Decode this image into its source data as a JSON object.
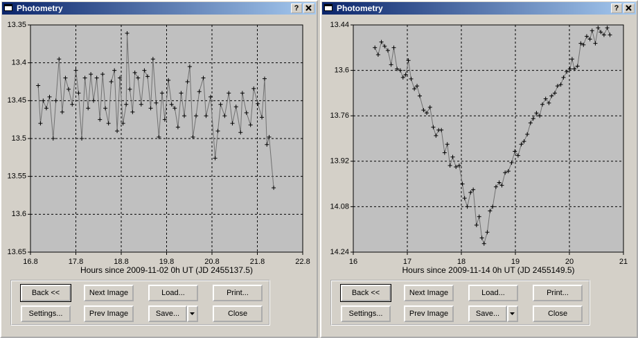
{
  "windows": [
    {
      "title": "Photometry",
      "help": "?",
      "buttons": [
        "Back <<",
        "Next Image",
        "Load...",
        "Print...",
        "Settings...",
        "Prev Image",
        "Save...",
        "Close"
      ]
    },
    {
      "title": "Photometry",
      "help": "?",
      "buttons": [
        "Back <<",
        "Next Image",
        "Load...",
        "Print...",
        "Settings...",
        "Prev Image",
        "Save...",
        "Close"
      ]
    }
  ],
  "chart_data": [
    {
      "type": "line",
      "x_label": "Hours since 2009-11-02 0h UT (JD 2455137.5)",
      "marker": "+",
      "grid": true,
      "invert_y": true,
      "xlim": [
        16.8,
        22.8
      ],
      "xticks": [
        16.8,
        17.8,
        18.8,
        19.8,
        20.8,
        21.8,
        22.8
      ],
      "ylim": [
        13.35,
        13.65
      ],
      "yticks": [
        13.35,
        13.4,
        13.45,
        13.5,
        13.55,
        13.6,
        13.65
      ],
      "x": [
        16.97,
        17.02,
        17.08,
        17.15,
        17.22,
        17.3,
        17.36,
        17.43,
        17.5,
        17.57,
        17.64,
        17.72,
        17.8,
        17.86,
        17.93,
        18.0,
        18.07,
        18.13,
        18.19,
        18.26,
        18.33,
        18.39,
        18.45,
        18.52,
        18.58,
        18.65,
        18.71,
        18.77,
        18.84,
        18.91,
        18.93,
        18.99,
        19.05,
        19.1,
        19.17,
        19.24,
        19.31,
        19.38,
        19.45,
        19.5,
        19.57,
        19.63,
        19.7,
        19.76,
        19.84,
        19.91,
        19.98,
        20.05,
        20.12,
        20.19,
        20.26,
        20.31,
        20.38,
        20.45,
        20.52,
        20.61,
        20.67,
        20.77,
        20.87,
        20.93,
        20.99,
        21.08,
        21.17,
        21.25,
        21.33,
        21.43,
        21.47,
        21.56,
        21.65,
        21.72,
        21.81,
        21.9,
        21.96,
        22.01,
        22.06,
        22.16
      ],
      "series": [
        {
          "color": "#000000",
          "values": [
            13.43,
            13.48,
            13.45,
            13.46,
            13.445,
            13.5,
            13.45,
            13.395,
            13.465,
            13.42,
            13.435,
            13.455,
            13.41,
            13.44,
            13.5,
            13.42,
            13.46,
            13.415,
            13.45,
            13.42,
            13.475,
            13.415,
            13.46,
            13.48,
            13.425,
            13.41,
            13.49,
            13.42,
            13.48,
            13.455,
            13.361,
            13.435,
            13.465,
            13.413,
            13.42,
            13.455,
            13.41,
            13.418,
            13.46,
            13.395,
            13.453,
            13.498,
            13.44,
            13.475,
            13.423,
            13.455,
            13.46,
            13.485,
            13.44,
            13.47,
            13.425,
            13.405,
            13.498,
            13.47,
            13.438,
            13.42,
            13.47,
            13.445,
            13.526,
            13.49,
            13.455,
            13.47,
            13.44,
            13.48,
            13.458,
            13.492,
            13.44,
            13.466,
            13.482,
            13.434,
            13.454,
            13.472,
            13.421,
            13.508,
            13.498,
            13.565
          ]
        }
      ]
    },
    {
      "type": "line",
      "x_label": "Hours since 2009-11-14 0h UT (JD 2455149.5)",
      "marker": "+",
      "grid": true,
      "invert_y": true,
      "xlim": [
        16,
        21
      ],
      "xticks": [
        16,
        17,
        18,
        19,
        20,
        21
      ],
      "ylim": [
        13.44,
        14.24
      ],
      "yticks": [
        13.44,
        13.6,
        13.76,
        13.92,
        14.08,
        14.24
      ],
      "x": [
        16.4,
        16.46,
        16.52,
        16.58,
        16.64,
        16.7,
        16.75,
        16.81,
        16.87,
        16.92,
        16.97,
        17.02,
        17.07,
        17.13,
        17.18,
        17.23,
        17.3,
        17.36,
        17.42,
        17.48,
        17.53,
        17.58,
        17.63,
        17.69,
        17.74,
        17.79,
        17.84,
        17.9,
        17.96,
        18.02,
        18.06,
        18.11,
        18.17,
        18.22,
        18.28,
        18.33,
        18.38,
        18.42,
        18.48,
        18.53,
        18.58,
        18.64,
        18.7,
        18.75,
        18.81,
        18.87,
        18.93,
        18.99,
        19.05,
        19.11,
        19.16,
        19.22,
        19.28,
        19.33,
        19.39,
        19.45,
        19.5,
        19.56,
        19.62,
        19.67,
        19.73,
        19.78,
        19.84,
        19.89,
        19.95,
        20.01,
        20.05,
        20.09,
        20.15,
        20.21,
        20.26,
        20.32,
        20.38,
        20.42,
        20.48,
        20.53,
        20.58,
        20.64,
        20.7,
        20.75
      ],
      "series": [
        {
          "color": "#000000",
          "values": [
            13.52,
            13.545,
            13.5,
            13.515,
            13.53,
            13.58,
            13.52,
            13.595,
            13.6,
            13.625,
            13.615,
            13.565,
            13.63,
            13.665,
            13.655,
            13.69,
            13.74,
            13.75,
            13.73,
            13.8,
            13.83,
            13.81,
            13.81,
            13.89,
            13.86,
            13.935,
            13.905,
            13.94,
            13.935,
            14.0,
            14.05,
            14.08,
            14.03,
            14.02,
            14.145,
            14.115,
            14.19,
            14.21,
            14.17,
            14.095,
            14.08,
            14.01,
            13.995,
            14.005,
            13.96,
            13.955,
            13.925,
            13.885,
            13.9,
            13.86,
            13.85,
            13.825,
            13.785,
            13.77,
            13.75,
            13.76,
            13.72,
            13.7,
            13.715,
            13.69,
            13.68,
            13.655,
            13.65,
            13.625,
            13.605,
            13.595,
            13.56,
            13.595,
            13.585,
            13.505,
            13.51,
            13.48,
            13.49,
            13.46,
            13.505,
            13.45,
            13.465,
            13.475,
            13.45,
            13.475
          ]
        }
      ]
    }
  ]
}
